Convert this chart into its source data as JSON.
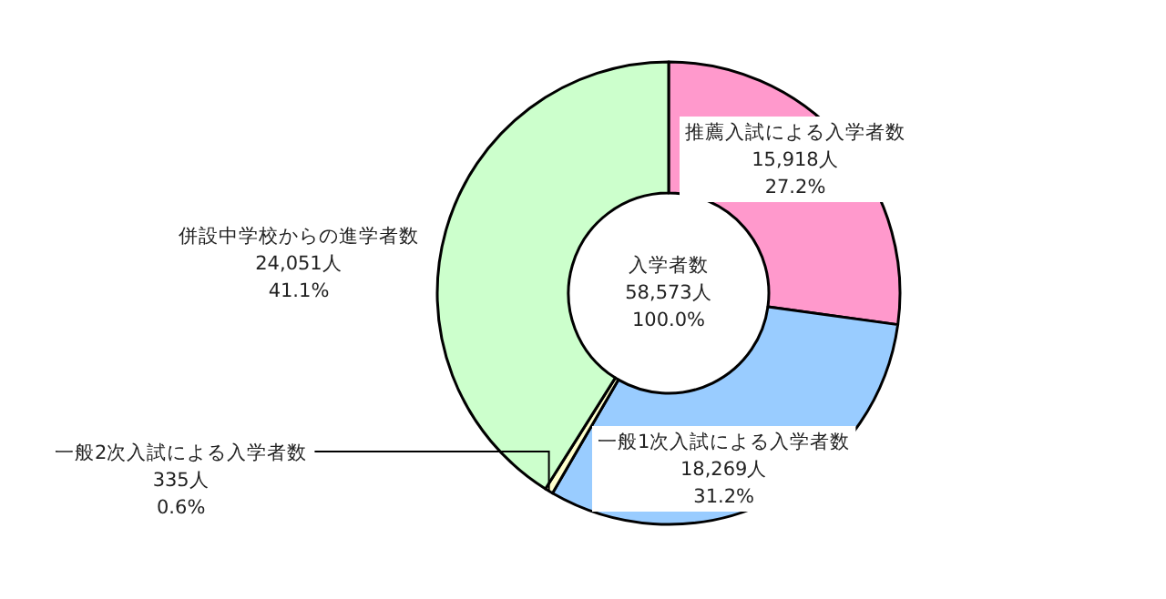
{
  "chart_data": {
    "type": "donut",
    "categories": [
      "推薦入試による入学者数",
      "一般1次入試による入学者数",
      "一般2次入試による入学者数",
      "併設中学校からの進学者数"
    ],
    "values": [
      15918,
      18269,
      335,
      24051
    ],
    "colors": [
      "#ff99cc",
      "#99ccff",
      "#ffffcc",
      "#ccffcc"
    ],
    "value_labels": [
      "15,918人",
      "18,269人",
      "335人",
      "24,051人"
    ],
    "annotations": [
      {
        "text": "27.2%",
        "x": "推薦入試による入学者数"
      },
      {
        "text": "31.2%",
        "x": "一般1次入試による入学者数"
      },
      {
        "text": "0.6%",
        "x": "一般2次入試による入学者数"
      },
      {
        "text": "41.1%",
        "x": "併設中学校からの進学者数"
      },
      "入学者数",
      "58,573人",
      "100.0%"
    ]
  }
}
